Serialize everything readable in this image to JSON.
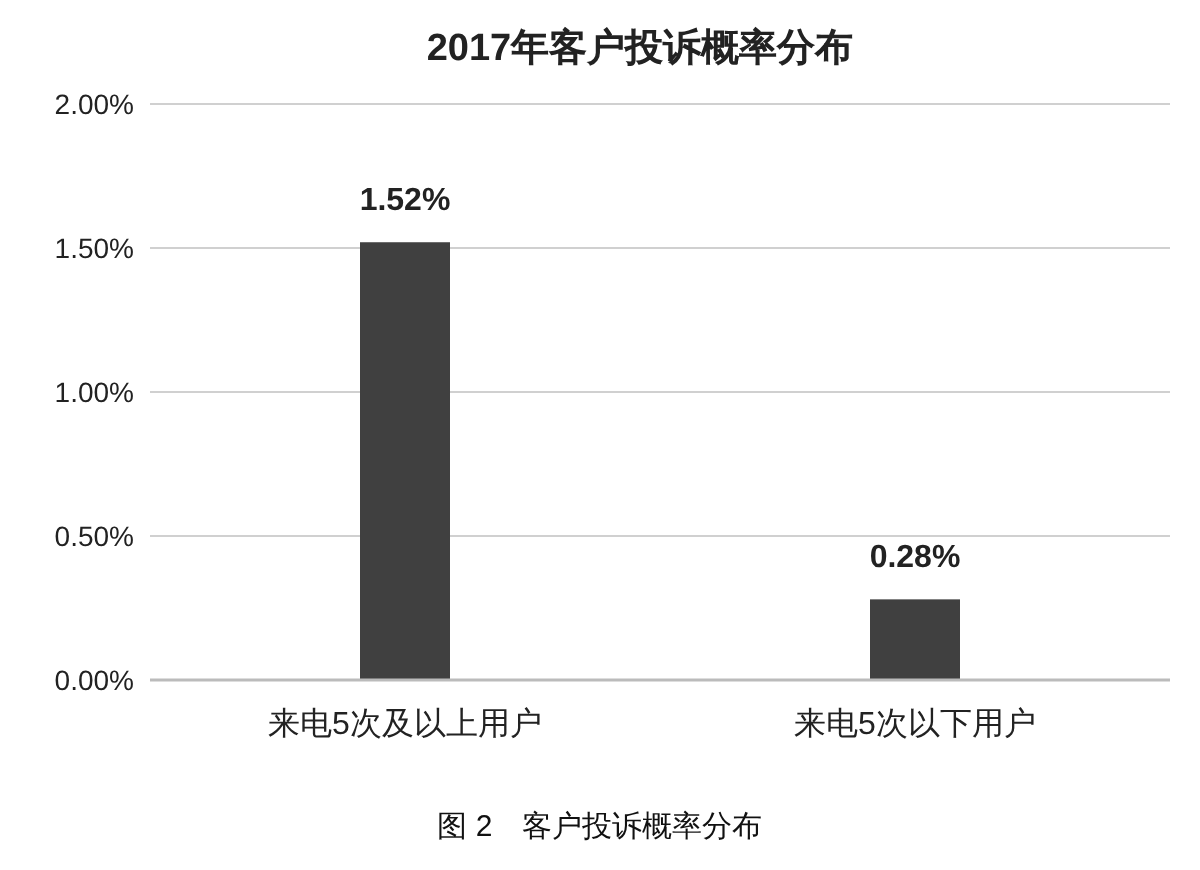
{
  "chart_data": {
    "type": "bar",
    "title": "2017年客户投诉概率分布",
    "categories": [
      "来电5次及以上用户",
      "来电5次以下用户"
    ],
    "values": [
      1.52,
      0.28
    ],
    "color": "#404040",
    "value_labels": [
      "1.52%",
      "0.28%"
    ],
    "ylim": [
      0,
      2
    ],
    "yticks": [
      {
        "value": 0,
        "label": "0.00%"
      },
      {
        "value": 0.5,
        "label": "0.50%"
      },
      {
        "value": 1,
        "label": "1.00%"
      },
      {
        "value": 1.5,
        "label": "1.50%"
      },
      {
        "value": 2,
        "label": "2.00%"
      }
    ],
    "grid": "y",
    "annotations": [
      "图 2　客户投诉概率分布"
    ]
  }
}
